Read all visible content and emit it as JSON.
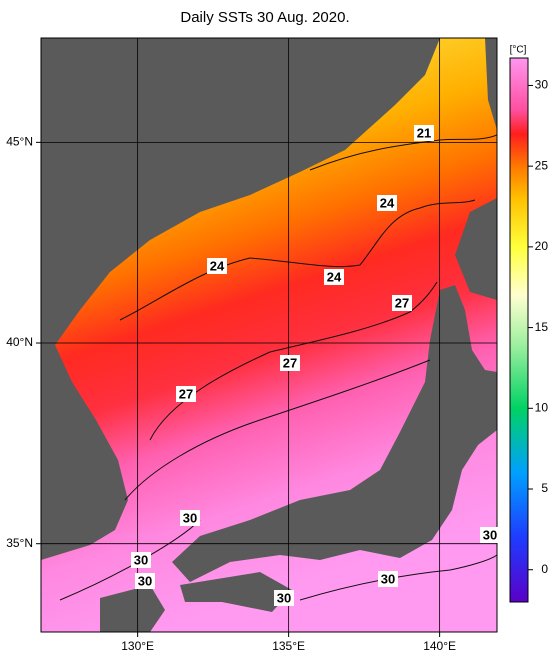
{
  "map": {
    "title": "Daily SSTs 30 Aug. 2020.",
    "xlim": [
      126.8,
      141.9
    ],
    "ylim": [
      32.8,
      47.6
    ],
    "xticks": [
      {
        "value": 130,
        "label": "130°E"
      },
      {
        "value": 135,
        "label": "135°E"
      },
      {
        "value": 140,
        "label": "140°E"
      }
    ],
    "yticks": [
      {
        "value": 35,
        "label": "35°N"
      },
      {
        "value": 40,
        "label": "40°N"
      },
      {
        "value": 45,
        "label": "45°N"
      }
    ],
    "grid": true,
    "land_color": "#5a5a5a",
    "colorbar": {
      "unit": "[°C]",
      "clim": [
        -2,
        31.7
      ],
      "ticks": [
        0,
        5,
        10,
        15,
        20,
        25,
        30
      ],
      "colormap": [
        [
          -2,
          "#5a00c8"
        ],
        [
          2,
          "#1e3cff"
        ],
        [
          6,
          "#00a0ff"
        ],
        [
          10,
          "#00d264"
        ],
        [
          14,
          "#a0f0a0"
        ],
        [
          17,
          "#ffffd0"
        ],
        [
          20,
          "#ffff3c"
        ],
        [
          23,
          "#ffc000"
        ],
        [
          25,
          "#ff7800"
        ],
        [
          27,
          "#ff1e1e"
        ],
        [
          28.5,
          "#ff50a0"
        ],
        [
          31.7,
          "#ff96f0"
        ]
      ]
    },
    "contour_labels": [
      21,
      24,
      24,
      24,
      27,
      27,
      27,
      30,
      30,
      30,
      30,
      30,
      30
    ]
  }
}
